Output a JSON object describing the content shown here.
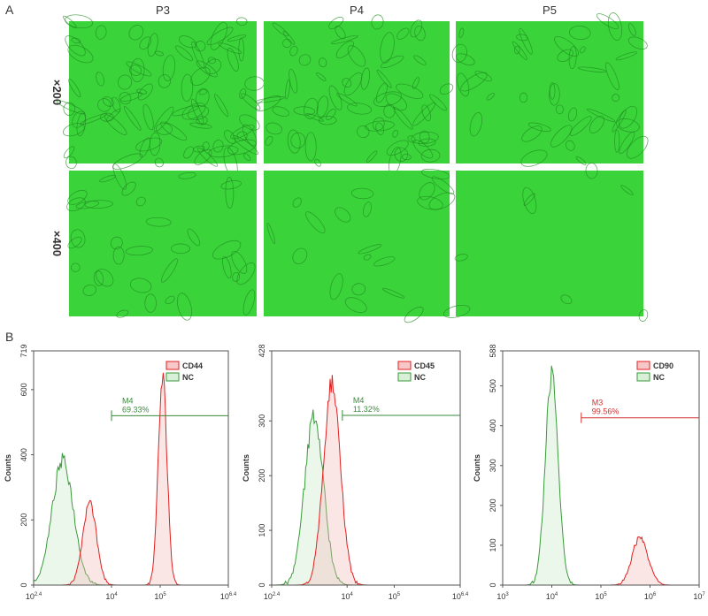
{
  "panels": {
    "A": {
      "label": "A",
      "columns": [
        "P3",
        "P4",
        "P5"
      ],
      "rows": [
        "×200",
        "×400"
      ]
    },
    "B": {
      "label": "B",
      "plots": [
        {
          "ylabel": "Counts",
          "ylim": [
            0,
            719
          ],
          "yticks": [
            0,
            200,
            400,
            600,
            719
          ],
          "xlim": [
            2.4,
            6.4
          ],
          "xticks": [
            {
              "value": 2.4,
              "base": "10",
              "exp": "2.4"
            },
            {
              "value": 4,
              "base": "10",
              "exp": "4"
            },
            {
              "value": 5,
              "base": "10",
              "exp": "5"
            },
            {
              "value": 6.4,
              "base": "10",
              "exp": "6.4"
            }
          ],
          "legend": [
            "CD44",
            "NC"
          ],
          "gate": {
            "name": "M4",
            "value": "69.33%",
            "color": "#3a8a3a",
            "y": 520,
            "from": 4
          }
        },
        {
          "ylabel": "Counts",
          "ylim": [
            0,
            428
          ],
          "yticks": [
            0,
            100,
            200,
            300,
            428
          ],
          "xlim": [
            2.4,
            6.4
          ],
          "xticks": [
            {
              "value": 2.4,
              "base": "10",
              "exp": "2.4"
            },
            {
              "value": 4,
              "base": "10",
              "exp": "4"
            },
            {
              "value": 5,
              "base": "10",
              "exp": "5"
            },
            {
              "value": 6.4,
              "base": "10",
              "exp": "6.4"
            }
          ],
          "legend": [
            "CD45",
            "NC"
          ],
          "gate": {
            "name": "M4",
            "value": "11.32%",
            "color": "#3a8a3a",
            "y": 310,
            "from": 3.9
          }
        },
        {
          "ylabel": "Counts",
          "ylim": [
            0,
            588
          ],
          "yticks": [
            0,
            100,
            200,
            300,
            400,
            500,
            588
          ],
          "xlim": [
            3,
            7
          ],
          "xticks": [
            {
              "value": 3,
              "base": "10",
              "exp": "3"
            },
            {
              "value": 4,
              "base": "10",
              "exp": "4"
            },
            {
              "value": 5,
              "base": "10",
              "exp": "5"
            },
            {
              "value": 6,
              "base": "10",
              "exp": "6"
            },
            {
              "value": 7,
              "base": "10",
              "exp": "7"
            }
          ],
          "legend": [
            "CD90",
            "NC"
          ],
          "gate": {
            "name": "M3",
            "value": "99.56%",
            "color": "#d03030",
            "y": 420,
            "from": 4.6
          }
        }
      ]
    }
  }
}
